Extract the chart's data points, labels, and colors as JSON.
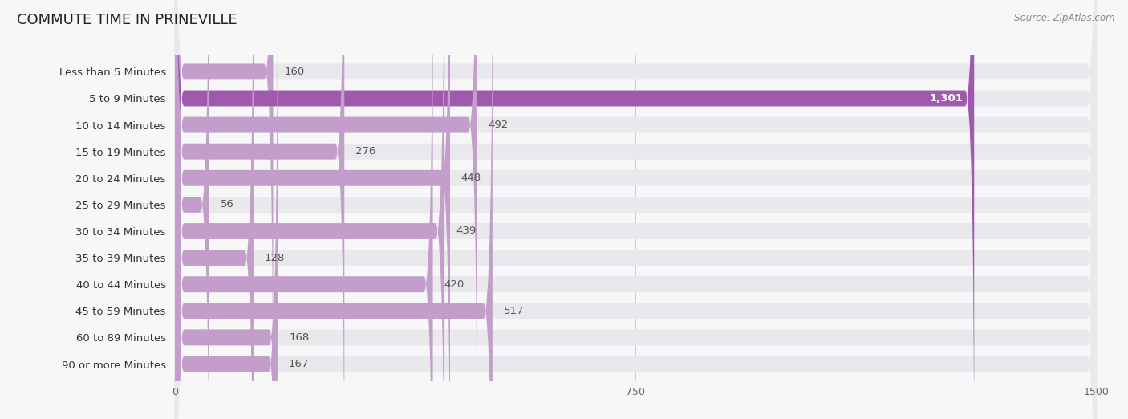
{
  "title": "COMMUTE TIME IN PRINEVILLE",
  "source": "Source: ZipAtlas.com",
  "categories": [
    "Less than 5 Minutes",
    "5 to 9 Minutes",
    "10 to 14 Minutes",
    "15 to 19 Minutes",
    "20 to 24 Minutes",
    "25 to 29 Minutes",
    "30 to 34 Minutes",
    "35 to 39 Minutes",
    "40 to 44 Minutes",
    "45 to 59 Minutes",
    "60 to 89 Minutes",
    "90 or more Minutes"
  ],
  "values": [
    160,
    1301,
    492,
    276,
    448,
    56,
    439,
    128,
    420,
    517,
    168,
    167
  ],
  "bar_color": "#c49eca",
  "highlight_index": 1,
  "highlight_color": "#a05aad",
  "bar_bg_color": "#e8e8ed",
  "xlim": [
    0,
    1500
  ],
  "xticks": [
    0,
    750,
    1500
  ],
  "title_fontsize": 13,
  "label_fontsize": 9.5,
  "value_fontsize": 9.5
}
